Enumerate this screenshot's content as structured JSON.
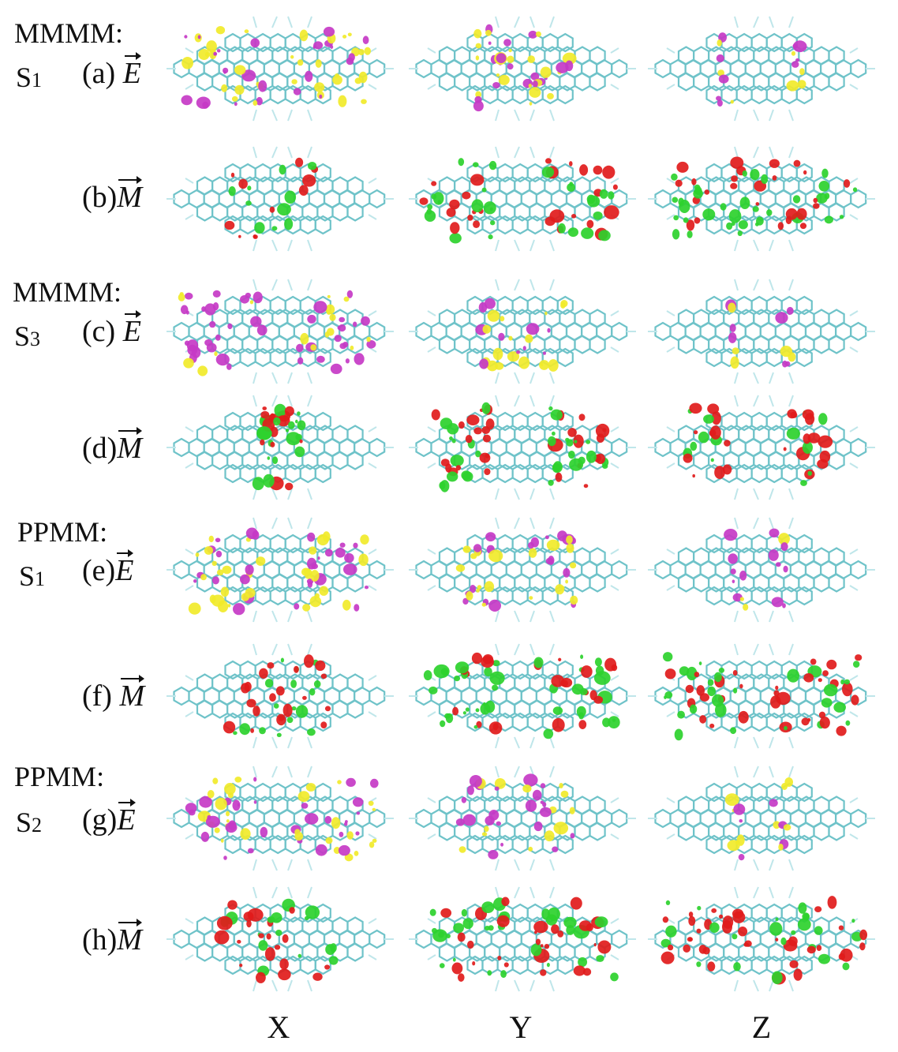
{
  "colors": {
    "bond": "#6fc3c9",
    "hydrogen": "#bfe6ea",
    "e_pos": "#c639c6",
    "e_neg": "#f1ea2a",
    "m_pos": "#e11b1b",
    "m_neg": "#2cd12c"
  },
  "groups": [
    {
      "system": "MMMM:",
      "state": "S",
      "state_sub": "1"
    },
    {
      "system": "MMMM:",
      "state": "S",
      "state_sub": "3"
    },
    {
      "system": "PPMM:",
      "state": "S",
      "state_sub": "1"
    },
    {
      "system": "PPMM:",
      "state": "S",
      "state_sub": "2"
    }
  ],
  "panels": [
    {
      "tag": "(a)",
      "field": "E",
      "kind": "E"
    },
    {
      "tag": "(b)",
      "field": "M",
      "kind": "M"
    },
    {
      "tag": "(c)",
      "field": "E",
      "kind": "E"
    },
    {
      "tag": "(d)",
      "field": "M",
      "kind": "M"
    },
    {
      "tag": "(e)",
      "field": "E",
      "kind": "E"
    },
    {
      "tag": "(f)",
      "field": "M",
      "kind": "M"
    },
    {
      "tag": "(g)",
      "field": "E",
      "kind": "E"
    },
    {
      "tag": "(h)",
      "field": "M",
      "kind": "M"
    }
  ],
  "columns": [
    "X",
    "Y",
    "Z"
  ]
}
